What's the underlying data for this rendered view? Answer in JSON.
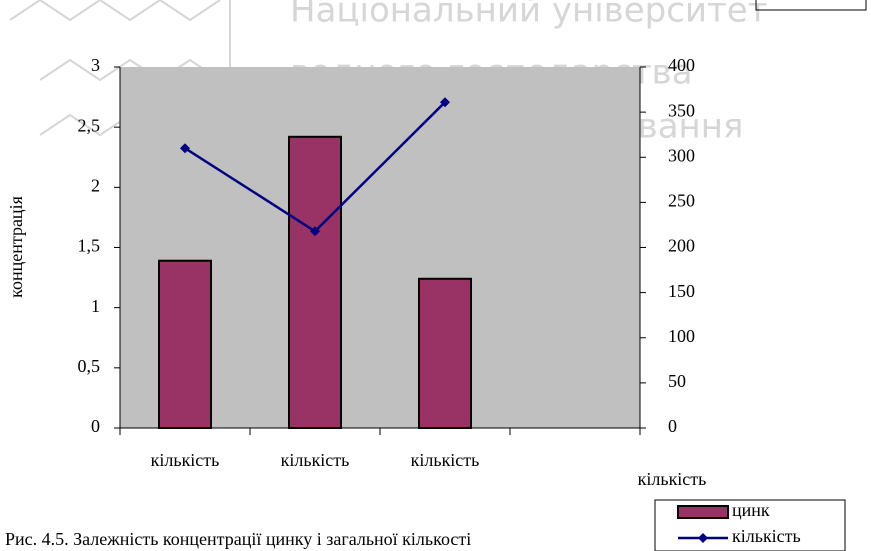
{
  "chart_data": {
    "type": "bar-line",
    "watermark": [
      "Національний університет",
      "водного господарства",
      "та природокористування"
    ],
    "ylabel": "концентрація",
    "xlabel": "кількість",
    "caption": "Рис. 4.5. Залежність концентрації цинку і загальної кількості",
    "categories": [
      "кількість",
      "кількість",
      "кількість",
      null
    ],
    "series": [
      {
        "name": "цинк",
        "type": "bar",
        "color": "#993366",
        "values": [
          1.39,
          2.42,
          1.24,
          null
        ]
      },
      {
        "name": "кількість",
        "type": "line",
        "axis": "y2",
        "color": "#000080",
        "values": [
          310,
          218,
          361,
          null
        ]
      }
    ],
    "ylim": [
      0,
      3
    ],
    "yticks": [
      {
        "value": 0,
        "label": "0"
      },
      {
        "value": 0.5,
        "label": "0,5"
      },
      {
        "value": 1,
        "label": "1"
      },
      {
        "value": 1.5,
        "label": "1,5"
      },
      {
        "value": 2,
        "label": "2"
      },
      {
        "value": 2.5,
        "label": "2,5"
      },
      {
        "value": 3,
        "label": "3"
      }
    ],
    "y2lim": [
      0,
      400
    ],
    "y2ticks": [
      0,
      50,
      100,
      150,
      200,
      250,
      300,
      350,
      400
    ],
    "legend": "bottom-right"
  }
}
